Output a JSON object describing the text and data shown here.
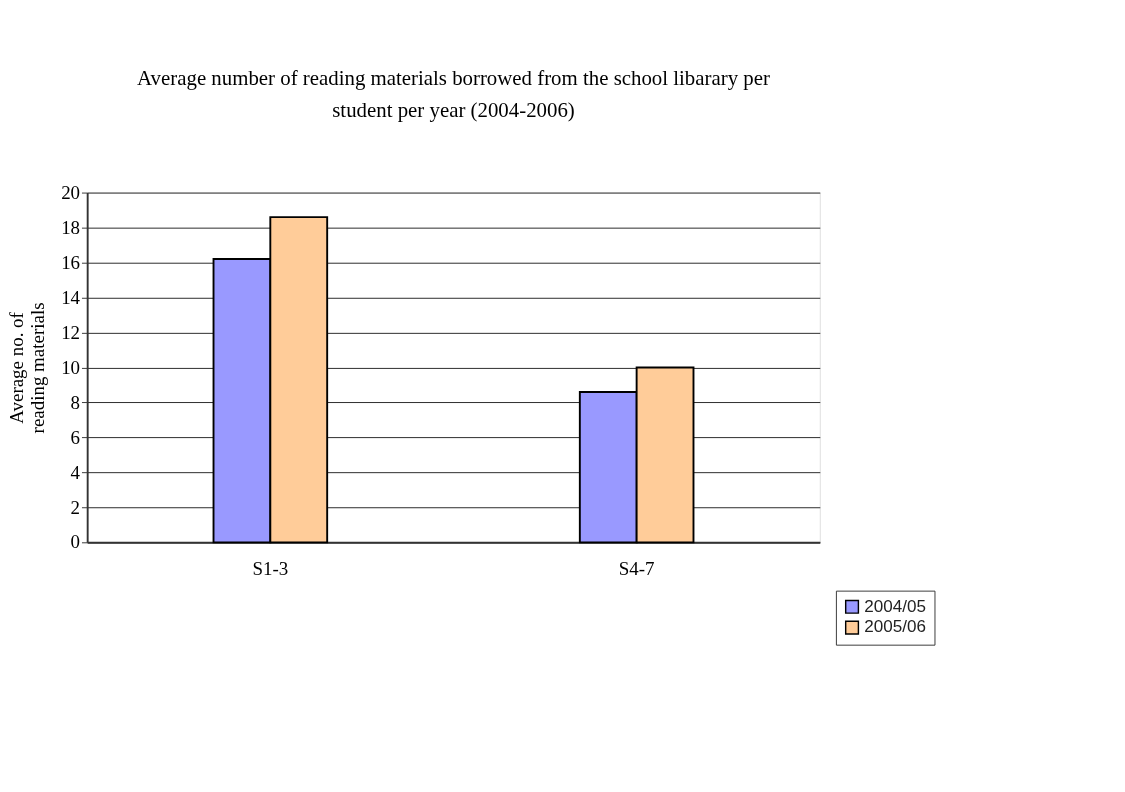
{
  "chart_data": {
    "type": "bar",
    "title": [
      "Average number of reading materials borrowed from the school libarary per",
      "student per year (2004-2006)"
    ],
    "ylabel": [
      "Average no. of",
      "reading materials"
    ],
    "categories": [
      "S1-3",
      "S4-7"
    ],
    "series": [
      {
        "name": "2004/05",
        "color": "#9999ff",
        "values": [
          16.2,
          8.6
        ]
      },
      {
        "name": "2005/06",
        "color": "#ffcc99",
        "values": [
          18.6,
          10.0
        ]
      }
    ],
    "ylim": [
      0,
      20
    ],
    "yticks": [
      0,
      2,
      4,
      6,
      8,
      10,
      12,
      14,
      16,
      18,
      20
    ],
    "grid": "y",
    "legend": "bottom right"
  }
}
